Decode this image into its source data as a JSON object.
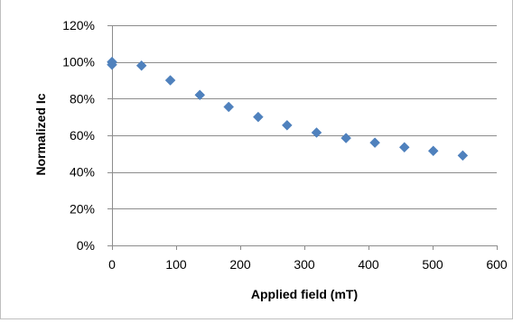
{
  "chart_data": {
    "type": "scatter",
    "title": "",
    "xlabel": "Applied field (mT)",
    "ylabel": "Normalized Ic",
    "xlim": [
      0,
      600
    ],
    "ylim": [
      0,
      120
    ],
    "x_ticks": [
      0,
      100,
      200,
      300,
      400,
      500,
      600
    ],
    "y_ticks": [
      0,
      20,
      40,
      60,
      80,
      100,
      120
    ],
    "y_tick_labels": [
      "0%",
      "20%",
      "40%",
      "60%",
      "80%",
      "100%",
      "120%"
    ],
    "grid": "horizontal",
    "legend": "none",
    "marker": "diamond",
    "series": [
      {
        "color": "#4F81BD",
        "points": [
          {
            "x": 0,
            "y": 100
          },
          {
            "x": 0,
            "y": 98.5
          },
          {
            "x": 46,
            "y": 98
          },
          {
            "x": 91,
            "y": 90
          },
          {
            "x": 137,
            "y": 82
          },
          {
            "x": 182,
            "y": 75.5
          },
          {
            "x": 228,
            "y": 70
          },
          {
            "x": 273,
            "y": 65.5
          },
          {
            "x": 319,
            "y": 61.5
          },
          {
            "x": 365,
            "y": 58.5
          },
          {
            "x": 410,
            "y": 56
          },
          {
            "x": 456,
            "y": 53.5
          },
          {
            "x": 501,
            "y": 51.5
          },
          {
            "x": 547,
            "y": 49
          }
        ]
      }
    ]
  }
}
